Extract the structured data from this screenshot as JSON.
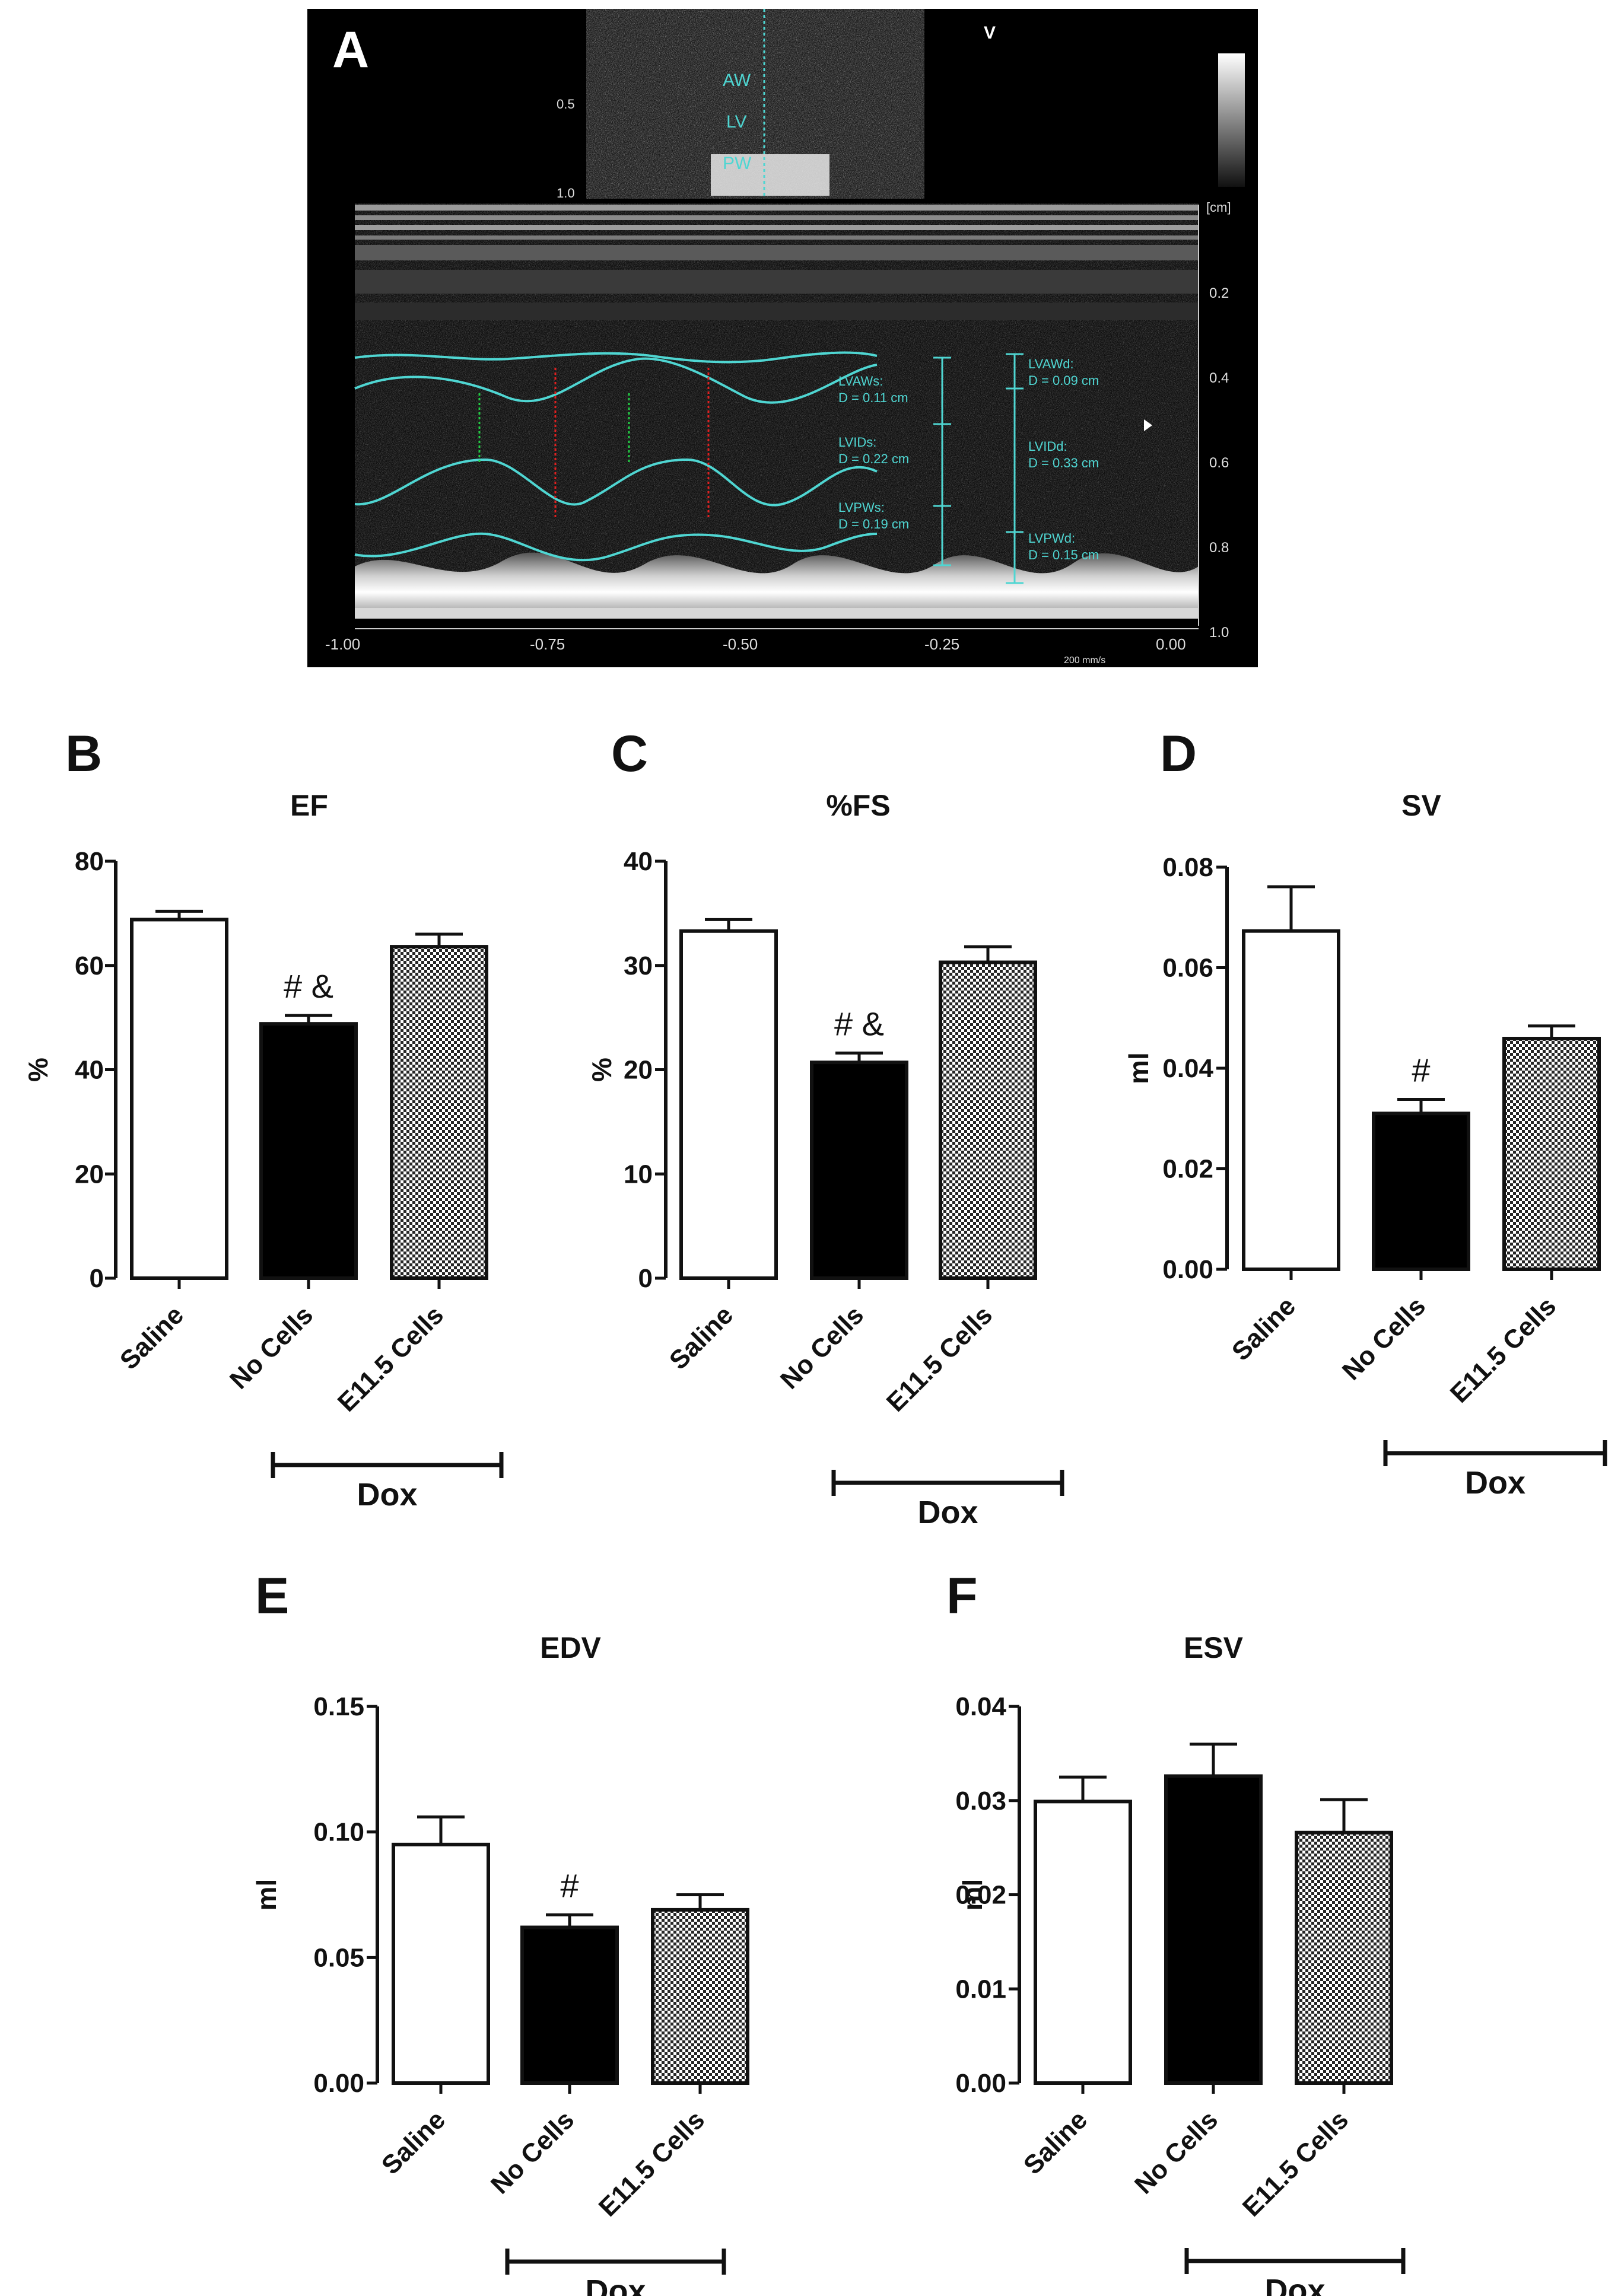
{
  "panelA": {
    "letter": "A",
    "labels": {
      "aw": "AW",
      "lv": "LV",
      "pw": "PW",
      "v_marker": "V",
      "depth_top_05": "0.5",
      "depth_top_10": "1.0",
      "unit": "[cm]",
      "depth_ticks": [
        "0.2",
        "0.4",
        "0.6",
        "0.8",
        "1.0"
      ],
      "time_ticks": [
        "-1.00",
        "-0.75",
        "-0.50",
        "-0.25",
        "0.00"
      ],
      "speed": "200 mm/s"
    },
    "measurements": [
      {
        "name": "LVAWs:",
        "value": "D = 0.11 cm"
      },
      {
        "name": "LVIDs:",
        "value": "D = 0.22 cm"
      },
      {
        "name": "LVPWs:",
        "value": "D = 0.19 cm"
      },
      {
        "name": "LVAWd:",
        "value": "D = 0.09 cm"
      },
      {
        "name": "LVIDd:",
        "value": "D = 0.33 cm"
      },
      {
        "name": "LVPWd:",
        "value": "D = 0.15 cm"
      }
    ],
    "colors": {
      "trace": "#4fd6d2",
      "systole_marker": "#e02020",
      "diastole_marker": "#22cc44"
    }
  },
  "chart_data": [
    {
      "panel": "B",
      "type": "bar",
      "title": "EF",
      "ylabel": "%",
      "categories": [
        "Saline",
        "No Cells",
        "E11.5 Cells"
      ],
      "values": [
        68.8,
        48.8,
        63.6
      ],
      "errors": [
        1.6,
        1.6,
        2.4
      ],
      "ylim": [
        0,
        80
      ],
      "yticks": [
        "0",
        "20",
        "40",
        "60",
        "80"
      ],
      "annotations": [
        "",
        "# &",
        ""
      ],
      "group_label": "Dox"
    },
    {
      "panel": "C",
      "type": "bar",
      "title": "%FS",
      "ylabel": "%",
      "categories": [
        "Saline",
        "No Cells",
        "E11.5 Cells"
      ],
      "values": [
        33.3,
        20.7,
        30.3
      ],
      "errors": [
        1.1,
        0.9,
        1.5
      ],
      "ylim": [
        0,
        40
      ],
      "yticks": [
        "0",
        "10",
        "20",
        "30",
        "40"
      ],
      "annotations": [
        "",
        "# &",
        ""
      ],
      "group_label": "Dox"
    },
    {
      "panel": "D",
      "type": "bar",
      "title": "SV",
      "ylabel": "ml",
      "categories": [
        "Saline",
        "No Cells",
        "E11.5 Cells"
      ],
      "values": [
        0.0673,
        0.031,
        0.0459
      ],
      "errors": [
        0.0088,
        0.0028,
        0.0025
      ],
      "ylim": [
        0,
        0.08
      ],
      "yticks": [
        "0.00",
        "0.02",
        "0.04",
        "0.06",
        "0.08"
      ],
      "annotations": [
        "",
        "#",
        ""
      ],
      "group_label": "Dox"
    },
    {
      "panel": "E",
      "type": "bar",
      "title": "EDV",
      "ylabel": "ml",
      "categories": [
        "Saline",
        "No Cells",
        "E11.5 Cells"
      ],
      "values": [
        0.095,
        0.062,
        0.069
      ],
      "errors": [
        0.011,
        0.005,
        0.006
      ],
      "ylim": [
        0,
        0.15
      ],
      "yticks": [
        "0.00",
        "0.05",
        "0.10",
        "0.15"
      ],
      "annotations": [
        "",
        "#",
        ""
      ],
      "group_label": "Dox"
    },
    {
      "panel": "F",
      "type": "bar",
      "title": "ESV",
      "ylabel": "ml",
      "categories": [
        "Saline",
        "No Cells",
        "E11.5 Cells"
      ],
      "values": [
        0.0299,
        0.0326,
        0.0266
      ],
      "errors": [
        0.0026,
        0.0034,
        0.0035
      ],
      "ylim": [
        0,
        0.04
      ],
      "yticks": [
        "0.00",
        "0.01",
        "0.02",
        "0.03",
        "0.04"
      ],
      "annotations": [
        "",
        "",
        ""
      ],
      "group_label": "Dox"
    }
  ]
}
